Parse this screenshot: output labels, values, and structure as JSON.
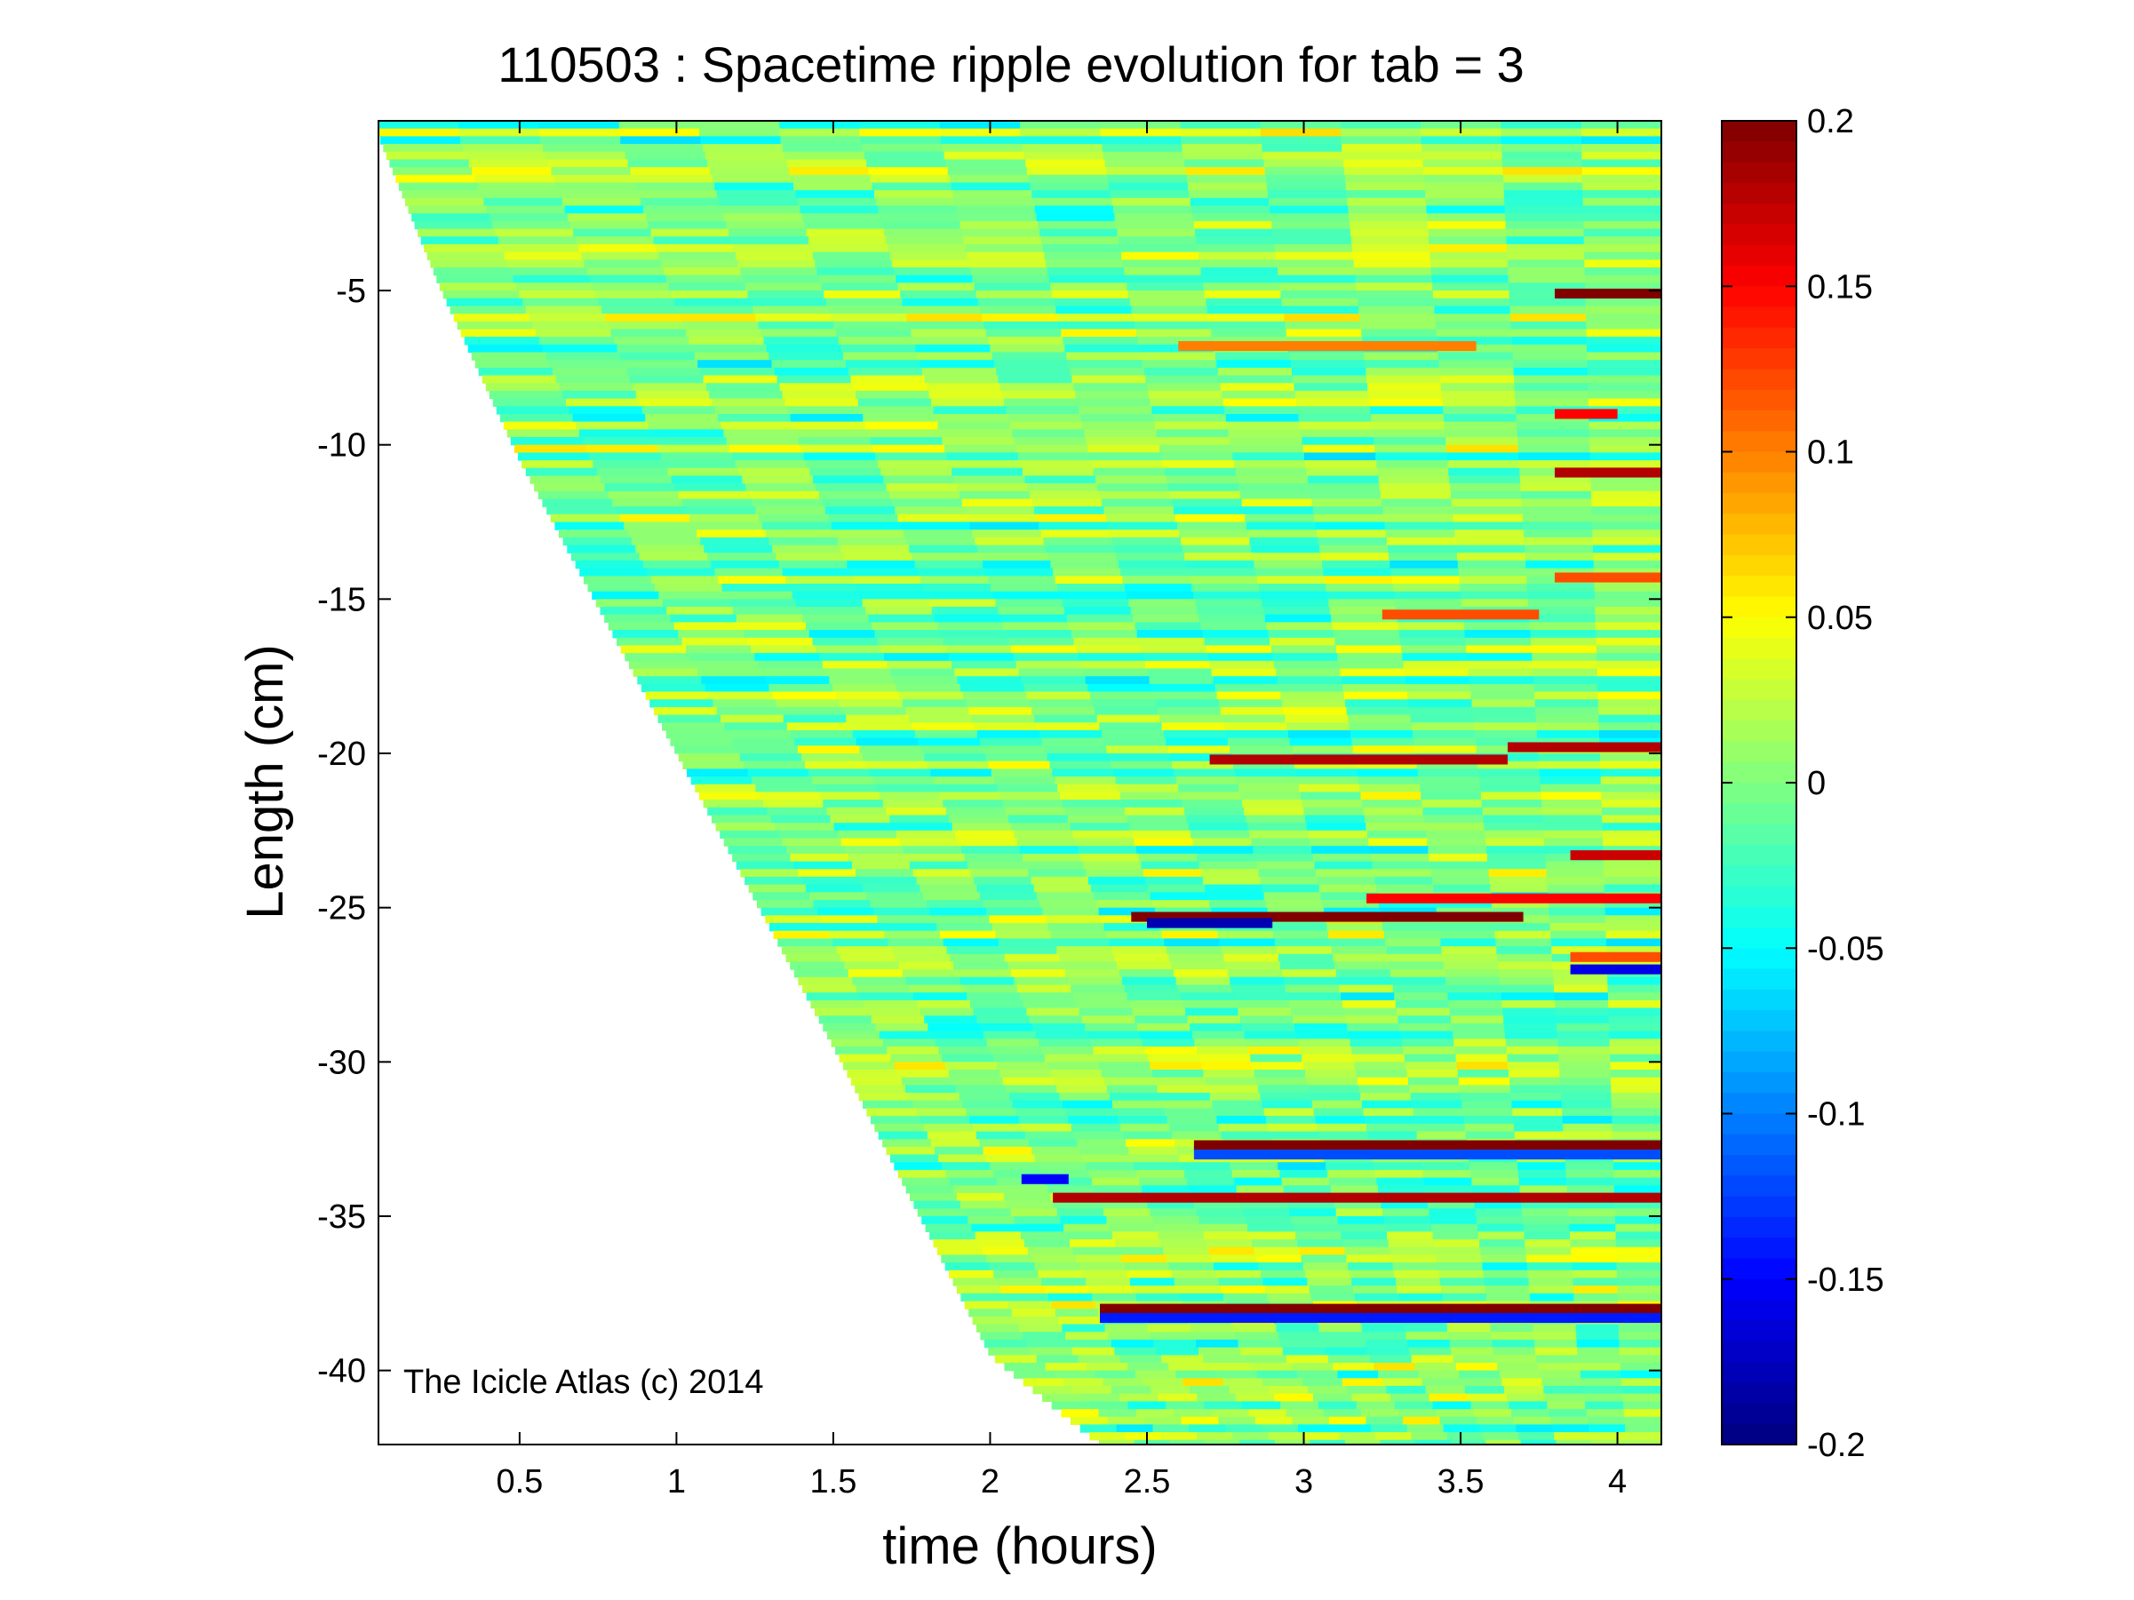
{
  "chart_data": {
    "type": "heatmap",
    "title": "110503 : Spacetime ripple evolution for tab = 3",
    "xlabel": "time (hours)",
    "ylabel": "Length (cm)",
    "xlim": [
      0.05,
      4.14
    ],
    "ylim": [
      -42.4,
      0.5
    ],
    "xticks": [
      0.5,
      1,
      1.5,
      2,
      2.5,
      3,
      3.5,
      4
    ],
    "xtick_labels": [
      "0.5",
      "1",
      "1.5",
      "2",
      "2.5",
      "3",
      "3.5",
      "4"
    ],
    "yticks": [
      -5,
      -10,
      -15,
      -20,
      -25,
      -30,
      -35,
      -40
    ],
    "ytick_labels": [
      "-5",
      "-10",
      "-15",
      "-20",
      "-25",
      "-30",
      "-35",
      "-40"
    ],
    "colormap": "jet",
    "clim": [
      -0.2,
      0.2
    ],
    "colorbar_ticks": [
      0.2,
      0.15,
      0.1,
      0.05,
      0,
      -0.05,
      -0.1,
      -0.15,
      -0.2
    ],
    "colorbar_labels": [
      "0.2",
      "0.15",
      "0.1",
      "0.05",
      "0",
      "-0.05",
      "-0.1",
      "-0.15",
      "-0.2"
    ],
    "growth_front": {
      "description_time_hours": [
        0.05,
        0.25,
        0.5,
        1.0,
        1.5,
        2.0,
        2.35
      ],
      "length_cm": [
        0.0,
        -5.0,
        -10.5,
        -20.0,
        -29.5,
        -39.5,
        -42.4
      ]
    },
    "features": [
      {
        "length_cm": -5.1,
        "t_start": 3.8,
        "t_end": 4.14,
        "value": 0.2
      },
      {
        "length_cm": -6.8,
        "t_start": 2.6,
        "t_end": 3.55,
        "value": 0.1
      },
      {
        "length_cm": -9.0,
        "t_start": 3.8,
        "t_end": 4.0,
        "value": 0.15
      },
      {
        "length_cm": -10.9,
        "t_start": 3.8,
        "t_end": 4.14,
        "value": 0.18
      },
      {
        "length_cm": -14.3,
        "t_start": 3.8,
        "t_end": 4.14,
        "value": 0.12
      },
      {
        "length_cm": -15.5,
        "t_start": 3.25,
        "t_end": 3.75,
        "value": 0.12
      },
      {
        "length_cm": -20.2,
        "t_start": 2.7,
        "t_end": 3.65,
        "value": 0.18
      },
      {
        "length_cm": -19.8,
        "t_start": 3.65,
        "t_end": 4.14,
        "value": 0.18
      },
      {
        "length_cm": -23.3,
        "t_start": 3.85,
        "t_end": 4.14,
        "value": 0.17
      },
      {
        "length_cm": -24.7,
        "t_start": 3.2,
        "t_end": 4.14,
        "value": 0.15
      },
      {
        "length_cm": -25.3,
        "t_start": 2.45,
        "t_end": 3.7,
        "value": 0.2
      },
      {
        "length_cm": -25.5,
        "t_start": 2.5,
        "t_end": 2.9,
        "value": -0.18
      },
      {
        "length_cm": -26.6,
        "t_start": 3.85,
        "t_end": 4.14,
        "value": 0.12
      },
      {
        "length_cm": -27.0,
        "t_start": 3.85,
        "t_end": 4.14,
        "value": -0.16
      },
      {
        "length_cm": -32.7,
        "t_start": 2.65,
        "t_end": 4.14,
        "value": 0.2
      },
      {
        "length_cm": -33.0,
        "t_start": 2.65,
        "t_end": 4.14,
        "value": -0.12
      },
      {
        "length_cm": -34.4,
        "t_start": 2.2,
        "t_end": 4.14,
        "value": 0.18
      },
      {
        "length_cm": -33.8,
        "t_start": 2.1,
        "t_end": 2.25,
        "value": -0.15
      },
      {
        "length_cm": -38.0,
        "t_start": 2.35,
        "t_end": 4.14,
        "value": 0.2
      },
      {
        "length_cm": -38.3,
        "t_start": 2.35,
        "t_end": 4.14,
        "value": -0.14
      }
    ],
    "annotations": [
      "The Icicle Atlas (c) 2014"
    ]
  }
}
